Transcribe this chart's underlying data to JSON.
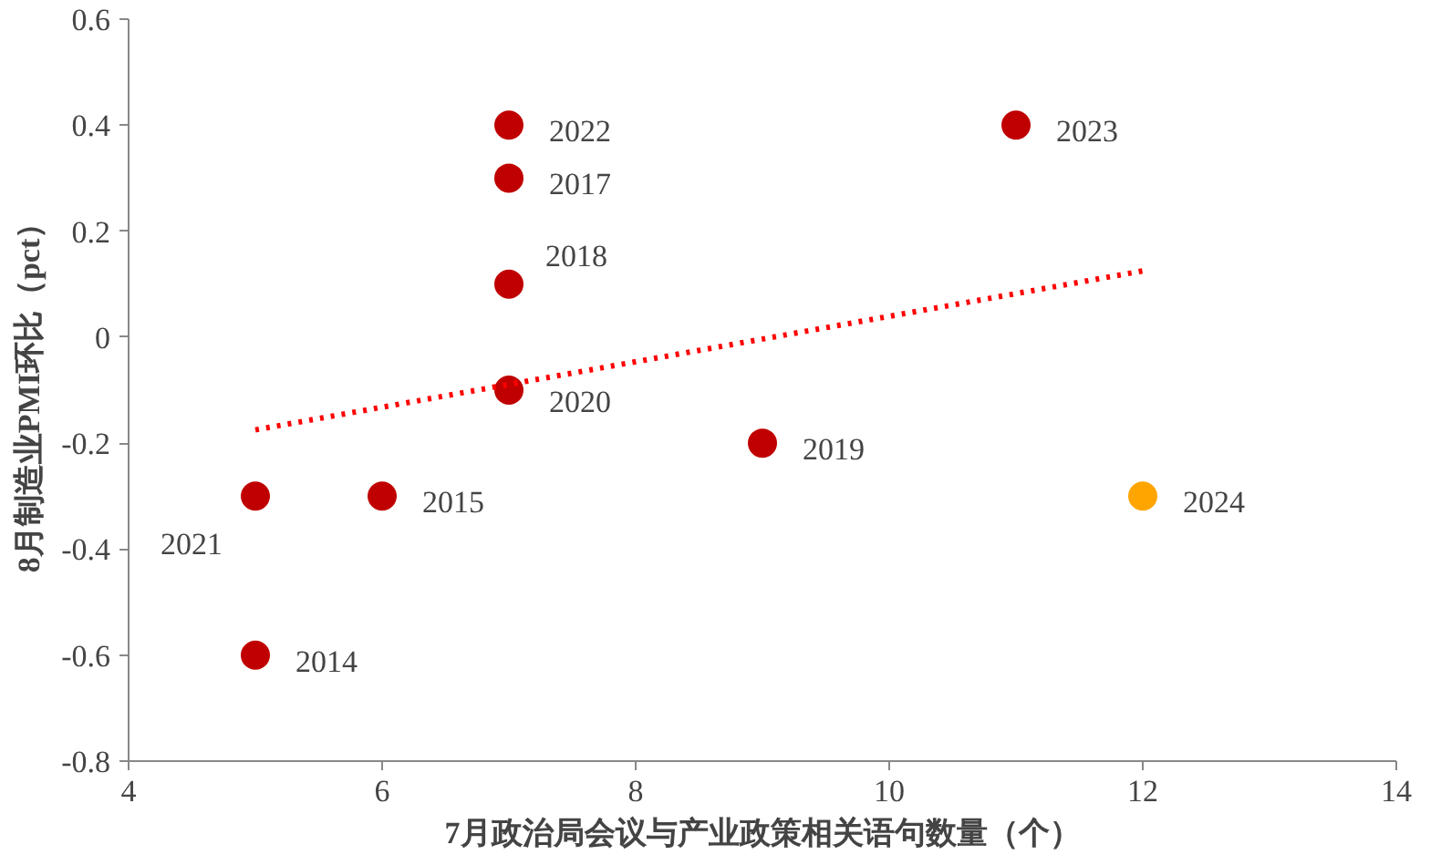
{
  "chart_data": {
    "type": "scatter",
    "xlabel": "7月政治局会议与产业政策相关语句数量（个）",
    "ylabel": "8月制造业PMI环比（pct）",
    "xlim": [
      4,
      14
    ],
    "xticks": [
      4,
      6,
      8,
      10,
      12,
      14
    ],
    "ylim": [
      -0.8,
      0.6
    ],
    "yticks": [
      -0.8,
      -0.6,
      -0.4,
      -0.2,
      0,
      0.2,
      0.4,
      0.6
    ],
    "grid": false,
    "marker": "circle",
    "series": [
      {
        "color": "#c00000",
        "x": [
          5,
          5,
          6,
          7,
          7,
          7,
          7,
          9,
          11,
          12
        ],
        "values": [
          -0.3,
          -0.6,
          -0.3,
          0.4,
          0.3,
          0.1,
          -0.1,
          -0.2,
          0.4,
          -0.3
        ],
        "colors": [
          "#c00000",
          "#c00000",
          "#c00000",
          "#c00000",
          "#c00000",
          "#c00000",
          "#c00000",
          "#c00000",
          "#c00000",
          "#ffa500"
        ]
      },
      {
        "type": "line",
        "color": "#ff0000",
        "line_style": "dotted",
        "marker": "none",
        "x": [
          5,
          12
        ],
        "values": [
          -0.175,
          0.125
        ]
      }
    ],
    "annotations": [
      {
        "text": "2021",
        "x": 5,
        "y": -0.3
      },
      {
        "text": "2014",
        "x": 5,
        "y": -0.6
      },
      {
        "text": "2015",
        "x": 6,
        "y": -0.3
      },
      {
        "text": "2022",
        "x": 7,
        "y": 0.4
      },
      {
        "text": "2017",
        "x": 7,
        "y": 0.3
      },
      {
        "text": "2018",
        "x": 7,
        "y": 0.1
      },
      {
        "text": "2020",
        "x": 7,
        "y": -0.1
      },
      {
        "text": "2019",
        "x": 9,
        "y": -0.2
      },
      {
        "text": "2023",
        "x": 11,
        "y": 0.4
      },
      {
        "text": "2024",
        "x": 12,
        "y": -0.3
      }
    ]
  }
}
